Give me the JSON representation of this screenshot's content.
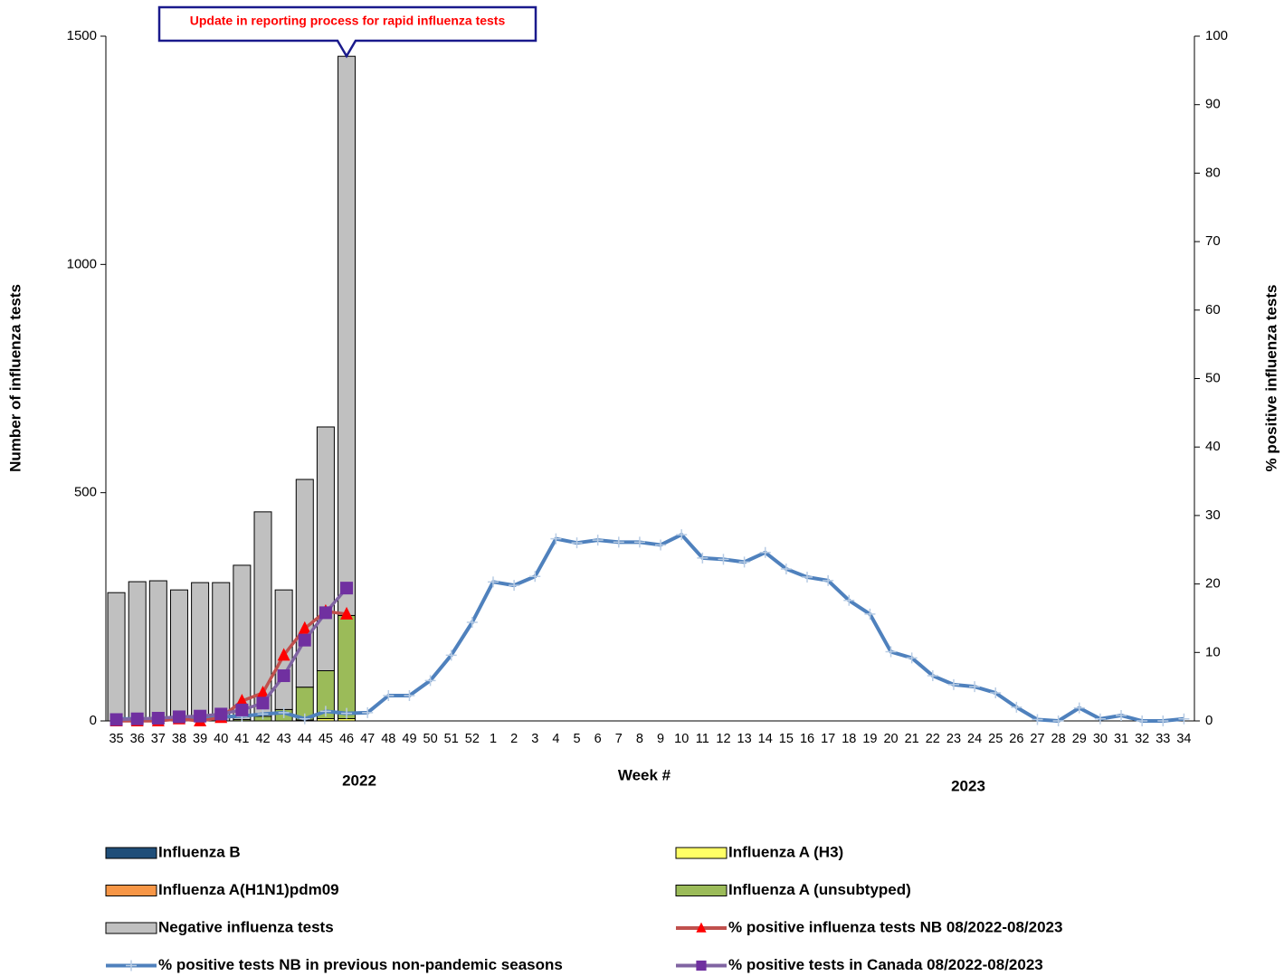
{
  "chart_data": {
    "type": "bar",
    "annotation": "Update in reporting process for rapid influenza tests",
    "xlabel": "Week #",
    "ylabel": "Number of influenza tests",
    "y2label": "% positive influenza tests",
    "year_labels": [
      "2022",
      "2023"
    ],
    "categories": [
      "35",
      "36",
      "37",
      "38",
      "39",
      "40",
      "41",
      "42",
      "43",
      "44",
      "45",
      "46",
      "47",
      "48",
      "49",
      "50",
      "51",
      "52",
      "1",
      "2",
      "3",
      "4",
      "5",
      "6",
      "7",
      "8",
      "9",
      "10",
      "11",
      "12",
      "13",
      "14",
      "15",
      "16",
      "17",
      "18",
      "19",
      "20",
      "21",
      "22",
      "23",
      "24",
      "25",
      "26",
      "27",
      "28",
      "29",
      "30",
      "31",
      "32",
      "33",
      "34"
    ],
    "ylim": [
      0,
      1500
    ],
    "yticks": [
      0,
      500,
      1000,
      1500
    ],
    "y2lim": [
      0,
      100
    ],
    "y2ticks": [
      0,
      10,
      20,
      30,
      40,
      50,
      60,
      70,
      80,
      90,
      100
    ],
    "series": [
      {
        "name": "Influenza B",
        "type": "bar",
        "color": "#1f4e79",
        "values": [
          0,
          0,
          0,
          0,
          0,
          0,
          0,
          0,
          0,
          0,
          0,
          0,
          null,
          null,
          null,
          null,
          null,
          null,
          null,
          null,
          null,
          null,
          null,
          null,
          null,
          null,
          null,
          null,
          null,
          null,
          null,
          null,
          null,
          null,
          null,
          null,
          null,
          null,
          null,
          null,
          null,
          null,
          null,
          null,
          null,
          null,
          null,
          null,
          null,
          null,
          null,
          null
        ]
      },
      {
        "name": "Influenza A (H3)",
        "type": "bar",
        "color": "#ffff66",
        "values": [
          0,
          0,
          0,
          0,
          0,
          0,
          0,
          0,
          0,
          2,
          5,
          5,
          null,
          null,
          null,
          null,
          null,
          null,
          null,
          null,
          null,
          null,
          null,
          null,
          null,
          null,
          null,
          null,
          null,
          null,
          null,
          null,
          null,
          null,
          null,
          null,
          null,
          null,
          null,
          null,
          null,
          null,
          null,
          null,
          null,
          null,
          null,
          null,
          null,
          null,
          null,
          null
        ]
      },
      {
        "name": "Influenza A(H1N1)pdm09",
        "type": "bar",
        "color": "#f79646",
        "values": [
          0,
          0,
          0,
          0,
          0,
          0,
          0,
          0,
          0,
          0,
          0,
          0,
          null,
          null,
          null,
          null,
          null,
          null,
          null,
          null,
          null,
          null,
          null,
          null,
          null,
          null,
          null,
          null,
          null,
          null,
          null,
          null,
          null,
          null,
          null,
          null,
          null,
          null,
          null,
          null,
          null,
          null,
          null,
          null,
          null,
          null,
          null,
          null,
          null,
          null,
          null,
          null
        ]
      },
      {
        "name": "Influenza A (unsubtyped)",
        "type": "bar",
        "color": "#9bbb59",
        "values": [
          0,
          0,
          0,
          0,
          0,
          0,
          3,
          10,
          25,
          72,
          105,
          226,
          null,
          null,
          null,
          null,
          null,
          null,
          null,
          null,
          null,
          null,
          null,
          null,
          null,
          null,
          null,
          null,
          null,
          null,
          null,
          null,
          null,
          null,
          null,
          null,
          null,
          null,
          null,
          null,
          null,
          null,
          null,
          null,
          null,
          null,
          null,
          null,
          null,
          null,
          null,
          null
        ]
      },
      {
        "name": "Negative influenza tests",
        "type": "bar",
        "color": "#c0c0c0",
        "values": [
          281,
          305,
          307,
          287,
          303,
          303,
          338,
          448,
          262,
          455,
          534,
          1225,
          null,
          null,
          null,
          null,
          null,
          null,
          null,
          null,
          null,
          null,
          null,
          null,
          null,
          null,
          null,
          null,
          null,
          null,
          null,
          null,
          null,
          null,
          null,
          null,
          null,
          null,
          null,
          null,
          null,
          null,
          null,
          null,
          null,
          null,
          null,
          null,
          null,
          null,
          null,
          null
        ]
      },
      {
        "name": "% positive influenza tests NB 08/2022-08/2023",
        "type": "line",
        "axis": "y2",
        "color": "#c0504d",
        "marker": "triangle",
        "marker_color": "#ff0000",
        "values": [
          0,
          0,
          0,
          0.3,
          0,
          0.5,
          2.9,
          4.1,
          9.6,
          13.5,
          16,
          15.6,
          null,
          null,
          null,
          null,
          null,
          null,
          null,
          null,
          null,
          null,
          null,
          null,
          null,
          null,
          null,
          null,
          null,
          null,
          null,
          null,
          null,
          null,
          null,
          null,
          null,
          null,
          null,
          null,
          null,
          null,
          null,
          null,
          null,
          null,
          null,
          null,
          null,
          null,
          null,
          null
        ]
      },
      {
        "name": "% positive tests NB in previous non-pandemic seasons",
        "type": "line",
        "axis": "y2",
        "color": "#4f81bd",
        "marker": "plus",
        "marker_color": "#b8cce4",
        "values": [
          0.3,
          0.3,
          0.3,
          0.4,
          0.5,
          0.6,
          0.7,
          1.0,
          1.2,
          0.3,
          1.4,
          1.1,
          1.2,
          3.7,
          3.7,
          5.9,
          9.6,
          14.4,
          20.3,
          19.8,
          21.1,
          26.6,
          26.0,
          26.4,
          26.1,
          26.1,
          25.7,
          27.2,
          23.8,
          23.6,
          23.2,
          24.6,
          22.2,
          21.0,
          20.5,
          17.6,
          15.6,
          10.1,
          9.2,
          6.6,
          5.3,
          5.0,
          4.1,
          2.0,
          0.2,
          0,
          1.9,
          0.3,
          0.8,
          0,
          0,
          0.3
        ]
      },
      {
        "name": "% positive tests  in Canada 08/2022-08/2023",
        "type": "line",
        "axis": "y2",
        "color": "#8064a2",
        "marker": "square",
        "marker_color": "#7030a0",
        "values": [
          0.2,
          0.3,
          0.4,
          0.6,
          0.7,
          1.0,
          1.6,
          2.6,
          6.6,
          11.8,
          15.8,
          19.4,
          null,
          null,
          null,
          null,
          null,
          null,
          null,
          null,
          null,
          null,
          null,
          null,
          null,
          null,
          null,
          null,
          null,
          null,
          null,
          null,
          null,
          null,
          null,
          null,
          null,
          null,
          null,
          null,
          null,
          null,
          null,
          null,
          null,
          null,
          null,
          null,
          null,
          null,
          null,
          null
        ]
      }
    ]
  }
}
